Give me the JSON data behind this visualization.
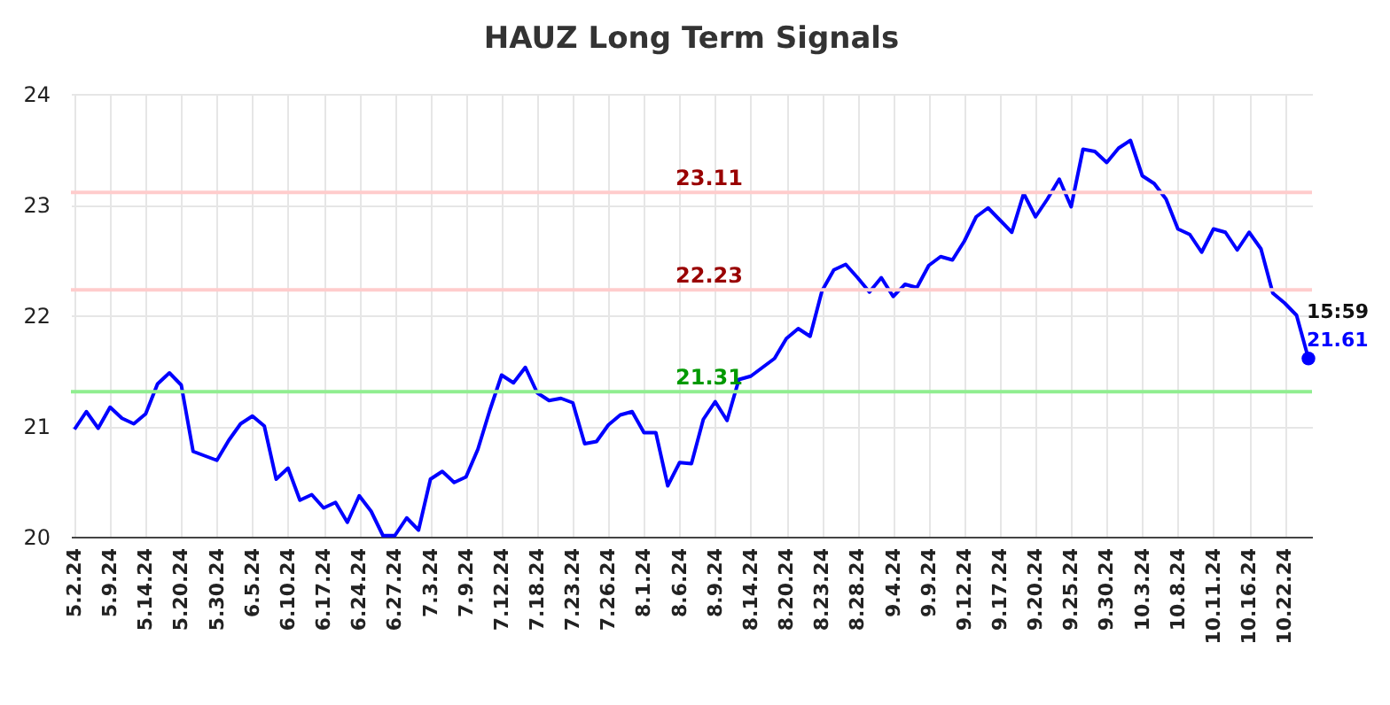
{
  "chart_data": {
    "type": "line",
    "title": "HAUZ Long Term Signals",
    "categories": [
      "5.2.24",
      null,
      null,
      "5.9.24",
      null,
      null,
      "5.14.24",
      null,
      null,
      "5.20.24",
      null,
      null,
      "5.30.24",
      null,
      null,
      "6.5.24",
      null,
      null,
      "6.10.24",
      null,
      null,
      "6.17.24",
      null,
      null,
      "6.24.24",
      null,
      null,
      "6.27.24",
      null,
      null,
      "7.3.24",
      null,
      null,
      "7.9.24",
      null,
      null,
      "7.12.24",
      null,
      null,
      "7.18.24",
      null,
      null,
      "7.23.24",
      null,
      null,
      "7.26.24",
      null,
      null,
      "8.1.24",
      null,
      null,
      "8.6.24",
      null,
      null,
      "8.9.24",
      null,
      null,
      "8.14.24",
      null,
      null,
      "8.20.24",
      null,
      null,
      "8.23.24",
      null,
      null,
      "8.28.24",
      null,
      null,
      "9.4.24",
      null,
      null,
      "9.9.24",
      null,
      null,
      "9.12.24",
      null,
      null,
      "9.17.24",
      null,
      null,
      "9.20.24",
      null,
      null,
      "9.25.24",
      null,
      null,
      "9.30.24",
      null,
      null,
      "10.3.24",
      null,
      null,
      "10.8.24",
      null,
      null,
      "10.11.24",
      null,
      null,
      "10.16.24",
      null,
      null,
      "10.22.24",
      null,
      null
    ],
    "series": [
      {
        "color": "#0000ff",
        "values": [
          20.97,
          21.13,
          20.98,
          21.17,
          21.07,
          21.02,
          21.11,
          21.38,
          21.48,
          21.37,
          20.77,
          20.73,
          20.69,
          20.87,
          21.02,
          21.09,
          21.0,
          20.52,
          20.62,
          20.33,
          20.38,
          20.26,
          20.31,
          20.13,
          20.37,
          20.23,
          20.01,
          20.01,
          20.17,
          20.06,
          20.52,
          20.59,
          20.49,
          20.54,
          20.79,
          21.14,
          21.46,
          21.39,
          21.53,
          21.3,
          21.23,
          21.25,
          21.21,
          20.84,
          20.86,
          21.01,
          21.1,
          21.13,
          20.94,
          20.94,
          20.46,
          20.67,
          20.66,
          21.06,
          21.22,
          21.05,
          21.42,
          21.45,
          21.53,
          21.61,
          21.79,
          21.88,
          21.81,
          22.22,
          22.41,
          22.46,
          22.34,
          22.21,
          22.34,
          22.17,
          22.28,
          22.25,
          22.45,
          22.53,
          22.5,
          22.67,
          22.89,
          22.97,
          22.86,
          22.75,
          23.1,
          22.89,
          23.05,
          23.23,
          22.98,
          23.5,
          23.48,
          23.38,
          23.51,
          23.58,
          23.26,
          23.19,
          23.05,
          22.78,
          22.73,
          22.57,
          22.78,
          22.75,
          22.59,
          22.75,
          22.6,
          22.2,
          22.11,
          22.0,
          21.61
        ],
        "value_labels": [
          null,
          null,
          null,
          null,
          null,
          null,
          null,
          null,
          null,
          null,
          null,
          null,
          null,
          null,
          null,
          null,
          null,
          null,
          null,
          null,
          null,
          null,
          null,
          null,
          null,
          null,
          null,
          null,
          null,
          null,
          null,
          null,
          null,
          null,
          null,
          null,
          null,
          null,
          null,
          null,
          null,
          null,
          null,
          null,
          null,
          null,
          null,
          null,
          null,
          null,
          null,
          null,
          null,
          null,
          null,
          null,
          null,
          null,
          null,
          null,
          null,
          null,
          null,
          null,
          null,
          null,
          null,
          null,
          null,
          null,
          null,
          null,
          null,
          null,
          null,
          null,
          null,
          null,
          null,
          null,
          null,
          null,
          null,
          null,
          null,
          null,
          null,
          null,
          null,
          null,
          null,
          null,
          null,
          null,
          null,
          null,
          null,
          null,
          null,
          null,
          null,
          null,
          null,
          null,
          "21.61"
        ]
      }
    ],
    "ylim": [
      20,
      24
    ],
    "yticks": [
      20,
      21,
      22,
      23,
      24
    ],
    "grid": true,
    "ref_lines": [
      {
        "axis": "y",
        "value": 23.11,
        "label": "23.11",
        "color": "#ffcccc"
      },
      {
        "axis": "y",
        "value": 22.23,
        "label": "22.23",
        "color": "#ffcccc"
      },
      {
        "axis": "y",
        "value": 21.31,
        "label": "21.31",
        "color": "#90ee90"
      }
    ],
    "annotations": [
      "15:59"
    ]
  }
}
